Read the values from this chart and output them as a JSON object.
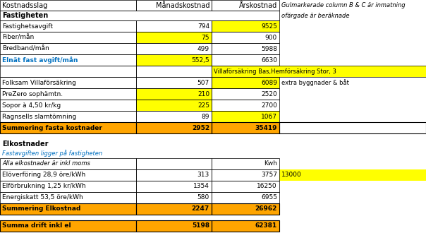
{
  "title_row": [
    "Kostnadsslag",
    "Månadskostnad",
    "Årskostnad",
    "Gulmarkerade column B & C är inmatning"
  ],
  "subtitle_note": "ofärgade är beräknade",
  "section1_header": "Fastigheten",
  "rows": [
    {
      "label": "Fastighetsavgift",
      "month": "794",
      "year": "9525",
      "note": "",
      "month_bg": "",
      "year_bg": "yellow"
    },
    {
      "label": "Fiber/mån",
      "month": "75",
      "year": "900",
      "note": "",
      "month_bg": "yellow",
      "year_bg": ""
    },
    {
      "label": "Bredband/mån",
      "month": "499",
      "year": "5988",
      "note": "",
      "month_bg": "",
      "year_bg": ""
    },
    {
      "label": "Elnät fast avgift/mån",
      "month": "552,5",
      "year": "6630",
      "note": "",
      "month_bg": "yellow",
      "year_bg": "",
      "label_color": "#0070C0",
      "label_bold": true
    },
    {
      "label": "",
      "month": "",
      "year": "",
      "note": "Villaförsäkring Bas,Hemförsäkring Stor, 3",
      "month_bg": "",
      "year_bg": "yellow",
      "note_bg": "yellow"
    },
    {
      "label": "Folksam Villaförsäkring",
      "month": "507",
      "year": "6089",
      "note": "extra byggnader & båt",
      "month_bg": "",
      "year_bg": "yellow",
      "note_bg": ""
    },
    {
      "label": "PreZero sophämtn.",
      "month": "210",
      "year": "2520",
      "note": "",
      "month_bg": "yellow",
      "year_bg": ""
    },
    {
      "label": "Sopor à 4,50 kr/kg",
      "month": "225",
      "year": "2700",
      "note": "",
      "month_bg": "yellow",
      "year_bg": ""
    },
    {
      "label": "Ragnsells slamtömning",
      "month": "89",
      "year": "1067",
      "note": "",
      "month_bg": "",
      "year_bg": "yellow"
    }
  ],
  "sum_row1": {
    "label": "Summering fasta kostnader",
    "month": "2952",
    "year": "35419",
    "bg": "#FFA500"
  },
  "section2_header": "Elkostnader",
  "section2_italic": "Fastavgiften ligger på fastigheten",
  "section2_note": "Alla elkostnader är inkl moms",
  "section2_kwh_label": "Kwh",
  "rows2": [
    {
      "label": "Elöverföring 28,9 öre/kWh",
      "month": "313",
      "year": "3757",
      "kwh": "13000",
      "month_bg": "",
      "year_bg": "",
      "kwh_bg": "yellow"
    },
    {
      "label": "Elförbrukning 1,25 kr/kWh",
      "month": "1354",
      "year": "16250",
      "kwh": "",
      "month_bg": "",
      "year_bg": "",
      "kwh_bg": ""
    },
    {
      "label": "Energiskatt 53,5 öre/kWh",
      "month": "580",
      "year": "6955",
      "kwh": "",
      "month_bg": "",
      "year_bg": "",
      "kwh_bg": ""
    }
  ],
  "sum_row2": {
    "label": "Summering Elkostnad",
    "month": "2247",
    "year": "26962",
    "bg": "#FFA500"
  },
  "sum_total": {
    "label": "Summa drift inkl el",
    "month": "5198",
    "year": "62381",
    "bg": "#FFA500"
  },
  "yellow": "#FFFF00",
  "orange": "#FFA500",
  "blue_text": "#0070C0"
}
